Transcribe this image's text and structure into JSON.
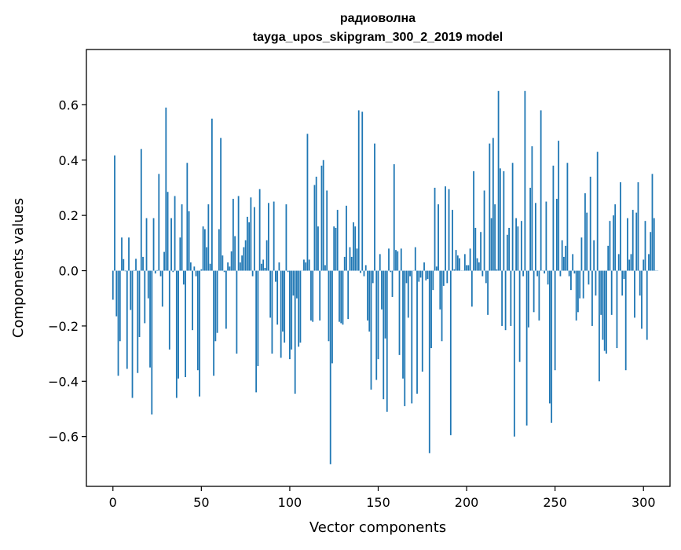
{
  "chart_data": {
    "type": "bar",
    "title": [
      "радиоволна",
      "tayga_upos_skipgram_300_2_2019 model"
    ],
    "xlabel": "Vector components",
    "ylabel": "Components values",
    "xlim": [
      -15,
      315
    ],
    "ylim": [
      -0.78,
      0.8
    ],
    "xticks": [
      0,
      50,
      100,
      150,
      200,
      250,
      300
    ],
    "xtick_labels": [
      "0",
      "50",
      "100",
      "150",
      "200",
      "250",
      "300"
    ],
    "yticks": [
      -0.6,
      -0.4,
      -0.2,
      0.0,
      0.2,
      0.4,
      0.6
    ],
    "ytick_labels": [
      "−0.6",
      "−0.4",
      "−0.2",
      "0.0",
      "0.2",
      "0.4",
      "0.6"
    ],
    "bar_color": "#1f77b4",
    "grid": false,
    "series": [
      {
        "name": "components",
        "values": [
          -0.105,
          0.417,
          -0.165,
          -0.38,
          -0.255,
          0.12,
          0.042,
          -0.002,
          -0.355,
          0.12,
          -0.142,
          -0.46,
          0.002,
          0.043,
          -0.37,
          -0.24,
          0.44,
          0.05,
          -0.19,
          0.19,
          -0.1,
          -0.35,
          -0.52,
          0.19,
          -0.01,
          0.002,
          0.35,
          -0.02,
          -0.13,
          0.068,
          0.59,
          0.285,
          -0.285,
          0.19,
          -0.005,
          0.27,
          -0.46,
          -0.39,
          0.12,
          0.24,
          -0.05,
          -0.385,
          0.39,
          0.215,
          0.03,
          -0.215,
          0.015,
          -0.02,
          -0.36,
          -0.455,
          0.005,
          0.16,
          0.15,
          0.085,
          0.24,
          0.025,
          0.55,
          -0.38,
          -0.255,
          -0.225,
          0.15,
          0.48,
          0.055,
          -0.005,
          -0.21,
          0.03,
          0.015,
          0.07,
          0.26,
          0.125,
          -0.3,
          0.27,
          0.03,
          0.055,
          0.085,
          0.11,
          0.195,
          0.175,
          0.265,
          -0.02,
          0.23,
          -0.44,
          -0.345,
          0.295,
          0.025,
          0.04,
          0.01,
          0.11,
          0.245,
          -0.17,
          -0.3,
          0.25,
          -0.04,
          -0.195,
          0.03,
          -0.315,
          -0.22,
          -0.26,
          0.24,
          -0.005,
          -0.32,
          -0.285,
          -0.09,
          -0.445,
          -0.1,
          -0.275,
          -0.26,
          -0.0,
          0.04,
          0.03,
          0.495,
          0.04,
          -0.18,
          -0.185,
          0.31,
          0.34,
          0.16,
          -0.18,
          0.38,
          0.4,
          0.02,
          0.29,
          -0.255,
          -0.7,
          -0.335,
          0.16,
          0.155,
          0.22,
          -0.185,
          -0.19,
          -0.195,
          0.05,
          0.235,
          -0.175,
          0.085,
          0.05,
          0.175,
          0.16,
          0.08,
          0.58,
          -0.008,
          0.575,
          -0.02,
          0.02,
          -0.18,
          -0.22,
          -0.43,
          -0.045,
          0.46,
          -0.395,
          -0.32,
          0.06,
          -0.14,
          -0.465,
          -0.245,
          -0.51,
          0.08,
          -0.005,
          -0.095,
          0.385,
          0.075,
          0.07,
          -0.305,
          0.08,
          -0.39,
          -0.49,
          -0.045,
          -0.17,
          -0.02,
          -0.48,
          0.0,
          0.085,
          -0.445,
          -0.04,
          -0.025,
          -0.365,
          0.03,
          -0.035,
          -0.03,
          -0.66,
          -0.28,
          -0.07,
          0.3,
          0.015,
          0.24,
          -0.14,
          -0.255,
          -0.055,
          0.305,
          -0.045,
          0.295,
          -0.595,
          0.22,
          0.005,
          0.075,
          0.055,
          0.045,
          0.0,
          0.0,
          0.06,
          0.02,
          0.02,
          0.08,
          -0.13,
          0.36,
          0.155,
          0.045,
          0.03,
          0.14,
          -0.02,
          0.29,
          -0.045,
          -0.16,
          0.46,
          0.19,
          0.48,
          0.24,
          0.005,
          0.65,
          0.37,
          -0.2,
          0.36,
          -0.215,
          0.13,
          0.155,
          -0.2,
          0.39,
          -0.6,
          0.19,
          0.16,
          -0.33,
          0.18,
          -0.02,
          0.65,
          -0.56,
          -0.205,
          0.3,
          0.45,
          -0.15,
          0.245,
          -0.02,
          -0.18,
          0.58,
          0.0,
          -0.01,
          0.25,
          -0.05,
          -0.48,
          -0.55,
          0.38,
          -0.36,
          0.26,
          0.47,
          -0.02,
          0.11,
          0.05,
          0.09,
          0.39,
          -0.02,
          -0.07,
          0.06,
          -0.01,
          -0.18,
          -0.15,
          -0.1,
          0.12,
          -0.1,
          0.28,
          0.21,
          -0.05,
          0.34,
          -0.2,
          0.11,
          -0.09,
          0.43,
          -0.4,
          -0.16,
          -0.25,
          -0.29,
          -0.3,
          0.09,
          0.18,
          -0.16,
          0.2,
          0.24,
          -0.28,
          0.06,
          0.32,
          -0.09,
          -0.03,
          -0.36,
          0.19,
          0.04,
          0.06,
          0.22,
          -0.17,
          0.21,
          0.32,
          -0.09,
          -0.21,
          0.04,
          0.18,
          -0.25,
          0.06,
          0.14,
          0.35,
          0.19,
          0.0,
          0.0
        ]
      }
    ]
  }
}
